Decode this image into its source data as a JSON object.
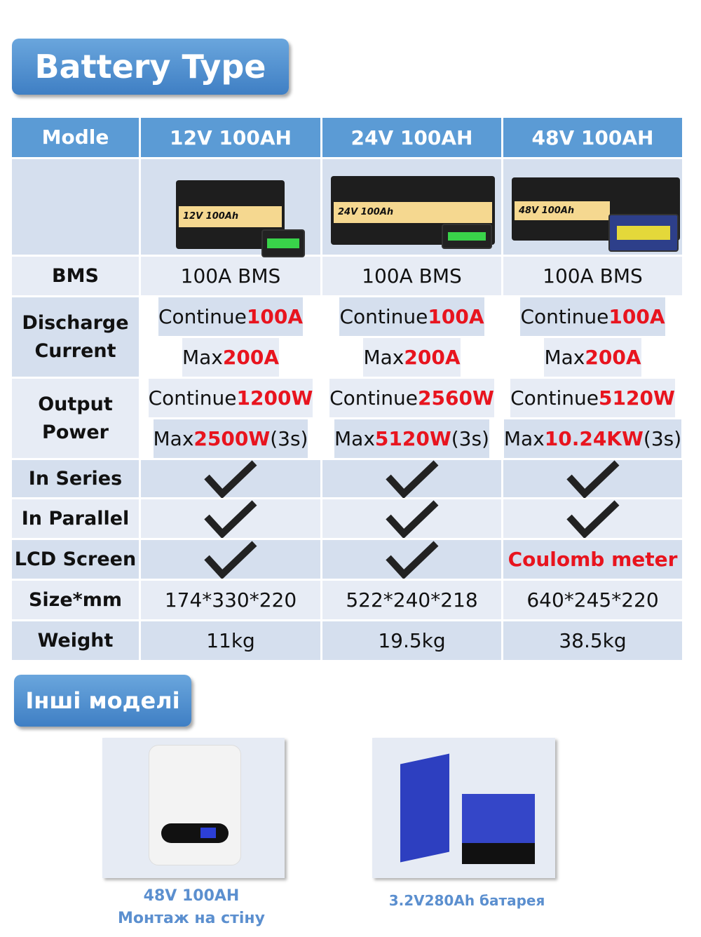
{
  "title": "Battery Type",
  "header": [
    "Modle",
    "12V 100AH",
    "24V 100AH",
    "48V 100AH"
  ],
  "product_labels": [
    "12V 100Ah",
    "24V 100Ah",
    "48V 100Ah"
  ],
  "rows": {
    "bms": {
      "label": "BMS",
      "values": [
        "100A BMS",
        "100A BMS",
        "100A BMS"
      ]
    },
    "discharge": {
      "label": "Discharge Current",
      "continue": [
        {
          "pre": "Continue ",
          "val": "100A"
        },
        {
          "pre": "Continue ",
          "val": "100A"
        },
        {
          "pre": "Continue ",
          "val": "100A"
        }
      ],
      "max": [
        {
          "pre": "Max ",
          "val": "200A"
        },
        {
          "pre": "Max ",
          "val": "200A"
        },
        {
          "pre": "Max ",
          "val": "200A"
        }
      ]
    },
    "output": {
      "label": "Output Power",
      "continue": [
        {
          "pre": "Continue ",
          "val": "1200W"
        },
        {
          "pre": "Continue ",
          "val": "2560W"
        },
        {
          "pre": "Continue ",
          "val": "5120W"
        }
      ],
      "max": [
        {
          "pre": "Max ",
          "val": "2500W",
          "post": "(3s)"
        },
        {
          "pre": "Max ",
          "val": "5120W",
          "post": "(3s)"
        },
        {
          "pre": "Max ",
          "val": "10.24KW",
          "post": "(3s)"
        }
      ]
    },
    "series": {
      "label": "In Series",
      "values": [
        true,
        true,
        true
      ]
    },
    "parallel": {
      "label": "In Parallel",
      "values": [
        true,
        true,
        true
      ]
    },
    "lcd": {
      "label": "LCD Screen",
      "values": [
        true,
        true
      ],
      "third": "Coulomb meter"
    },
    "size": {
      "label": "Size*mm",
      "values": [
        "174*330*220",
        "522*240*218",
        "640*245*220"
      ]
    },
    "weight": {
      "label": "Weight",
      "values": [
        "11kg",
        "19.5kg",
        "38.5kg"
      ]
    }
  },
  "other": {
    "title": "Інші моделі",
    "items": [
      {
        "line1": "48V 100AH",
        "line2": "Монтаж на стіну"
      },
      {
        "line1": "3.2V280Ah батарея"
      }
    ]
  },
  "colors": {
    "header": "#5b9bd5",
    "highlight": "#e8141e",
    "caption": "#5b8fcf"
  }
}
